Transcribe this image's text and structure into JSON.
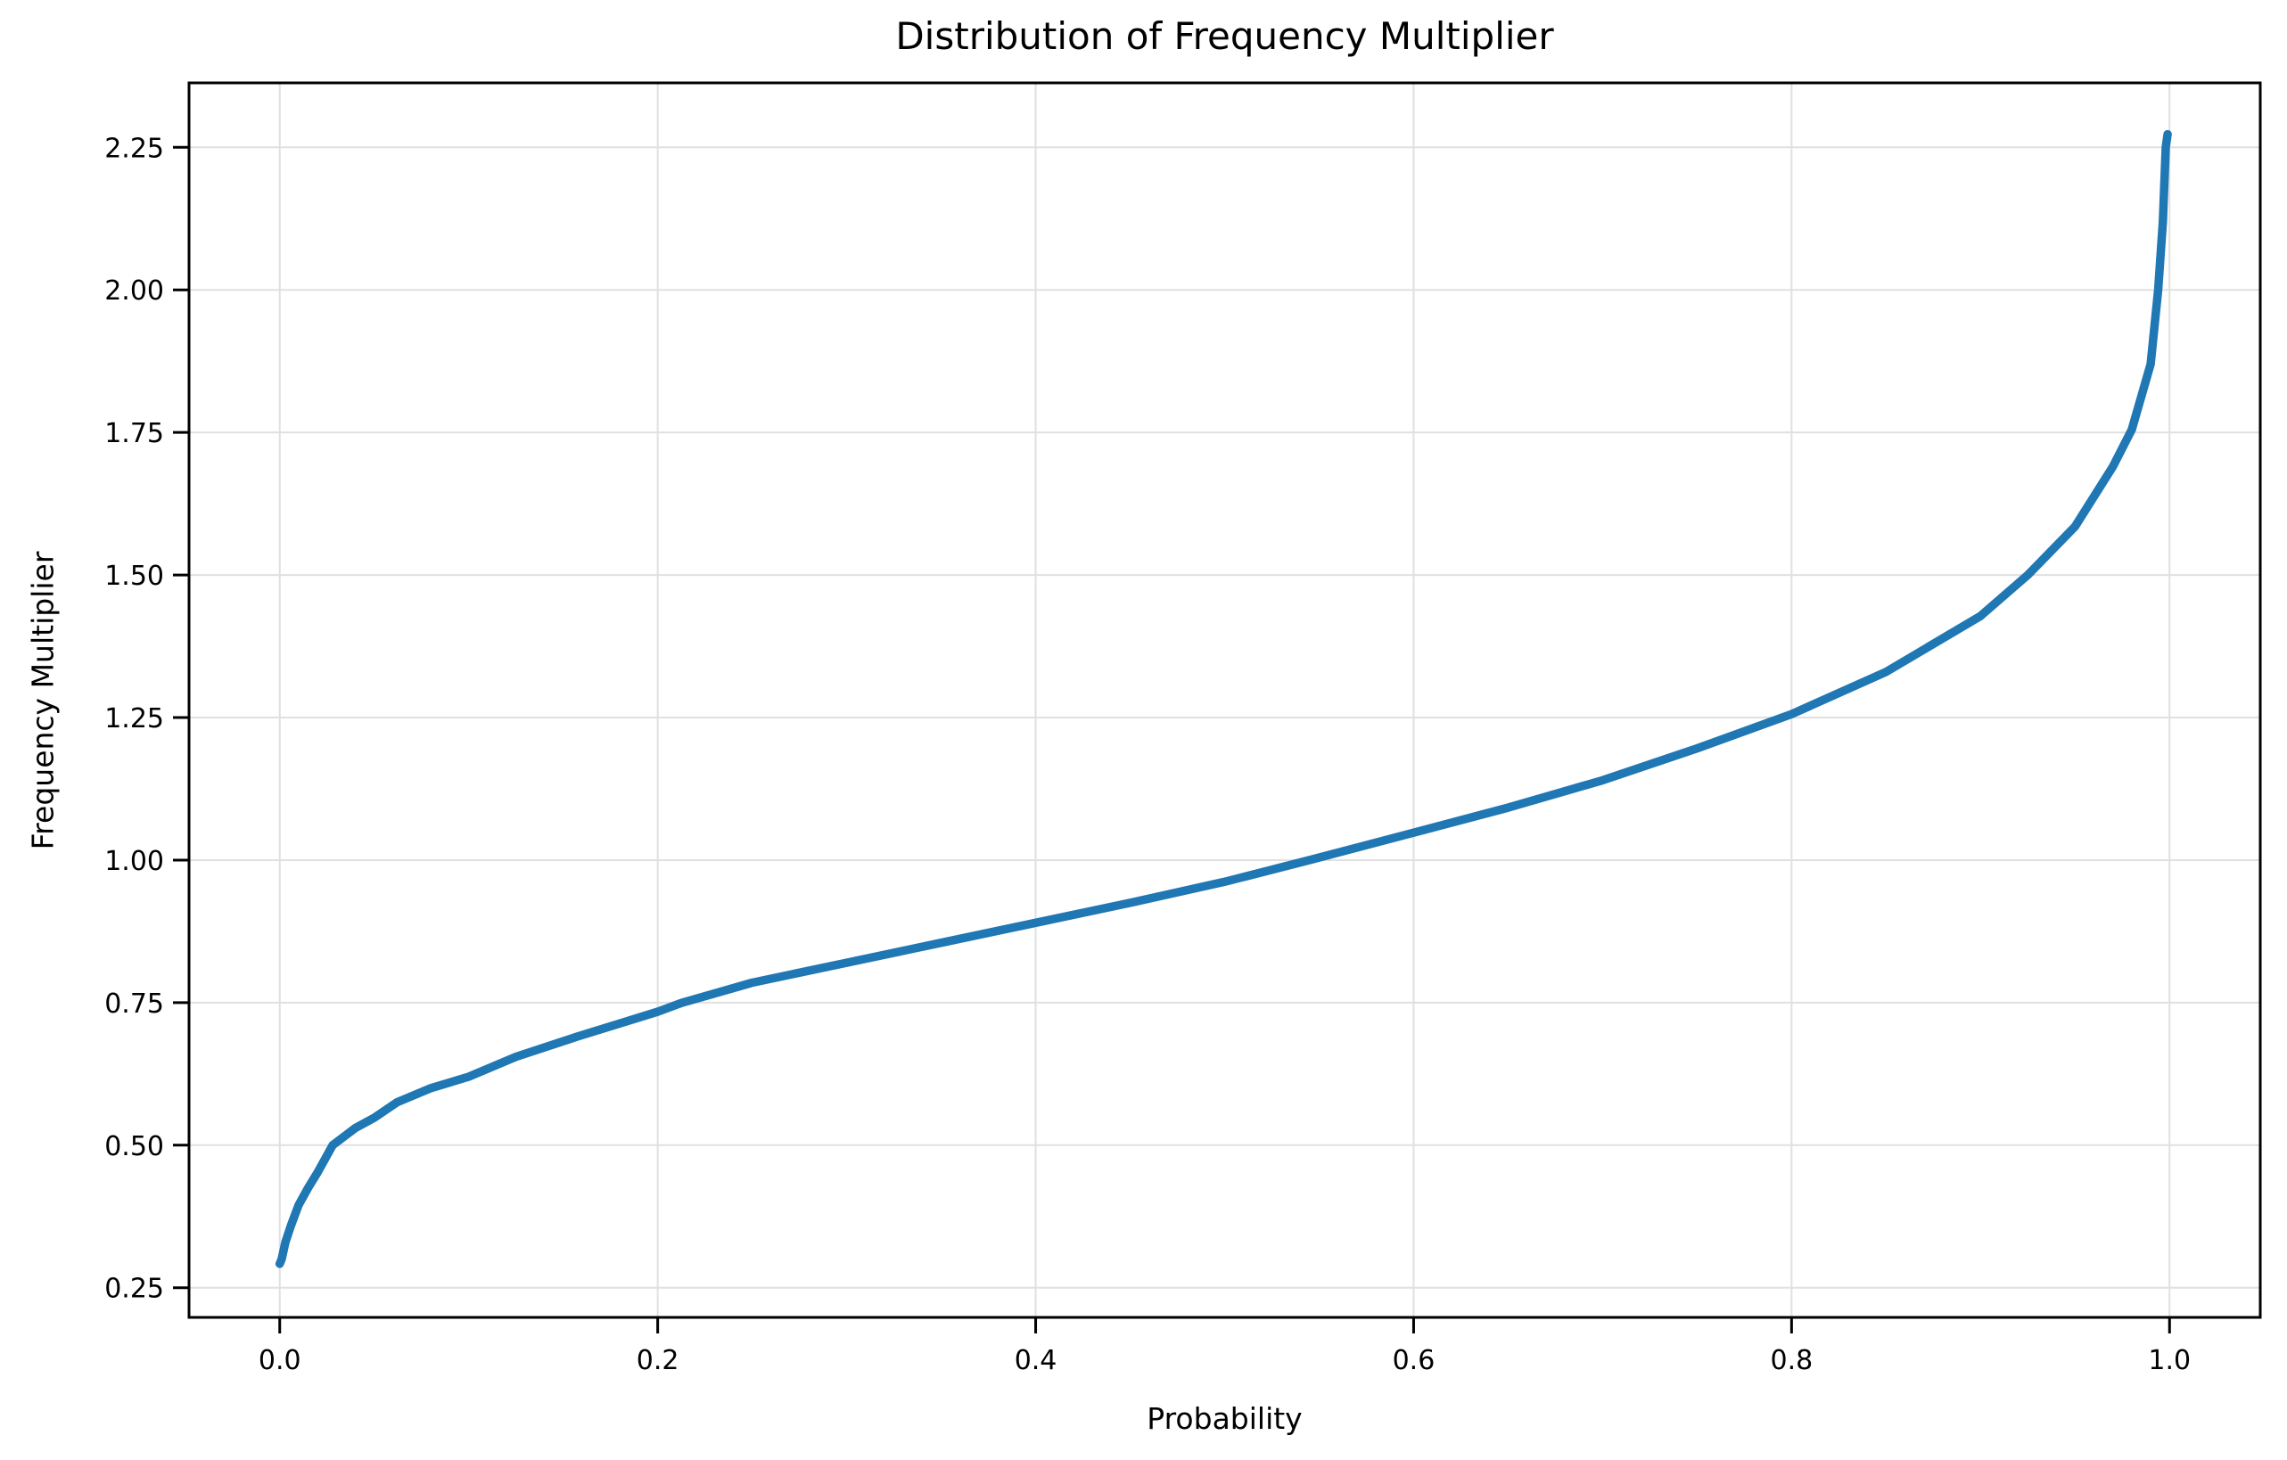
{
  "chart_data": {
    "type": "line",
    "title": "Distribution of Frequency Multiplier",
    "xlabel": "Probability",
    "ylabel": "Frequency Multiplier",
    "x_tick_labels": [
      "0.0",
      "0.2",
      "0.4",
      "0.6",
      "0.8",
      "1.0"
    ],
    "y_tick_labels": [
      "0.25",
      "0.50",
      "0.75",
      "1.00",
      "1.25",
      "1.50",
      "1.75",
      "2.00",
      "2.25"
    ],
    "xlim": [
      -0.048,
      1.048
    ],
    "ylim": [
      0.198,
      2.363
    ],
    "grid": true,
    "legend": false,
    "line_color": "#1f77b4",
    "grid_color": "#e0e0e0",
    "spine_color": "#000000",
    "series": [
      {
        "name": "frequency-multiplier-quantile",
        "points": [
          [
            0.0,
            0.292
          ],
          [
            0.001,
            0.3
          ],
          [
            0.003,
            0.33
          ],
          [
            0.006,
            0.36
          ],
          [
            0.01,
            0.395
          ],
          [
            0.015,
            0.425
          ],
          [
            0.02,
            0.452
          ],
          [
            0.028,
            0.5
          ],
          [
            0.04,
            0.53
          ],
          [
            0.05,
            0.548
          ],
          [
            0.062,
            0.575
          ],
          [
            0.08,
            0.6
          ],
          [
            0.1,
            0.62
          ],
          [
            0.125,
            0.655
          ],
          [
            0.157,
            0.69
          ],
          [
            0.2,
            0.734
          ],
          [
            0.213,
            0.75
          ],
          [
            0.25,
            0.785
          ],
          [
            0.3,
            0.82
          ],
          [
            0.35,
            0.855
          ],
          [
            0.4,
            0.89
          ],
          [
            0.45,
            0.925
          ],
          [
            0.5,
            0.962
          ],
          [
            0.545,
            1.0
          ],
          [
            0.6,
            1.048
          ],
          [
            0.65,
            1.092
          ],
          [
            0.7,
            1.14
          ],
          [
            0.75,
            1.196
          ],
          [
            0.8,
            1.256
          ],
          [
            0.85,
            1.33
          ],
          [
            0.9,
            1.428
          ],
          [
            0.925,
            1.5
          ],
          [
            0.95,
            1.585
          ],
          [
            0.97,
            1.69
          ],
          [
            0.98,
            1.755
          ],
          [
            0.99,
            1.87
          ],
          [
            0.994,
            2.0
          ],
          [
            0.9965,
            2.12
          ],
          [
            0.998,
            2.25
          ],
          [
            0.999,
            2.273
          ]
        ]
      }
    ]
  }
}
